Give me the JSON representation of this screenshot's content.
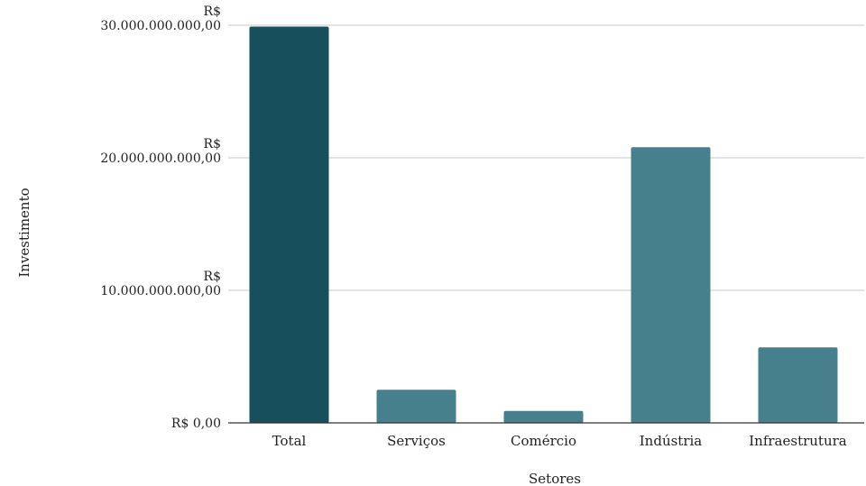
{
  "chart_data": {
    "type": "bar",
    "title": "",
    "xlabel": "Setores",
    "ylabel": "Investimento",
    "categories": [
      "Total",
      "Serviços",
      "Comércio",
      "Indústria",
      "Infraestrutura"
    ],
    "values": [
      29900000000,
      2500000000,
      900000000,
      20800000000,
      5700000000
    ],
    "ylim": [
      0,
      30000000000
    ],
    "yticks": [
      {
        "value": 0,
        "lines": [
          "R$ 0,00"
        ]
      },
      {
        "value": 10000000000,
        "lines": [
          "R$",
          "10.000.000.000,00"
        ]
      },
      {
        "value": 20000000000,
        "lines": [
          "R$",
          "20.000.000.000,00"
        ]
      },
      {
        "value": 30000000000,
        "lines": [
          "R$",
          "30.000.000.000,00"
        ]
      }
    ],
    "grid": true,
    "legend": "none",
    "colors": {
      "highlight": "#174f5c",
      "bar": "#46808c"
    }
  }
}
